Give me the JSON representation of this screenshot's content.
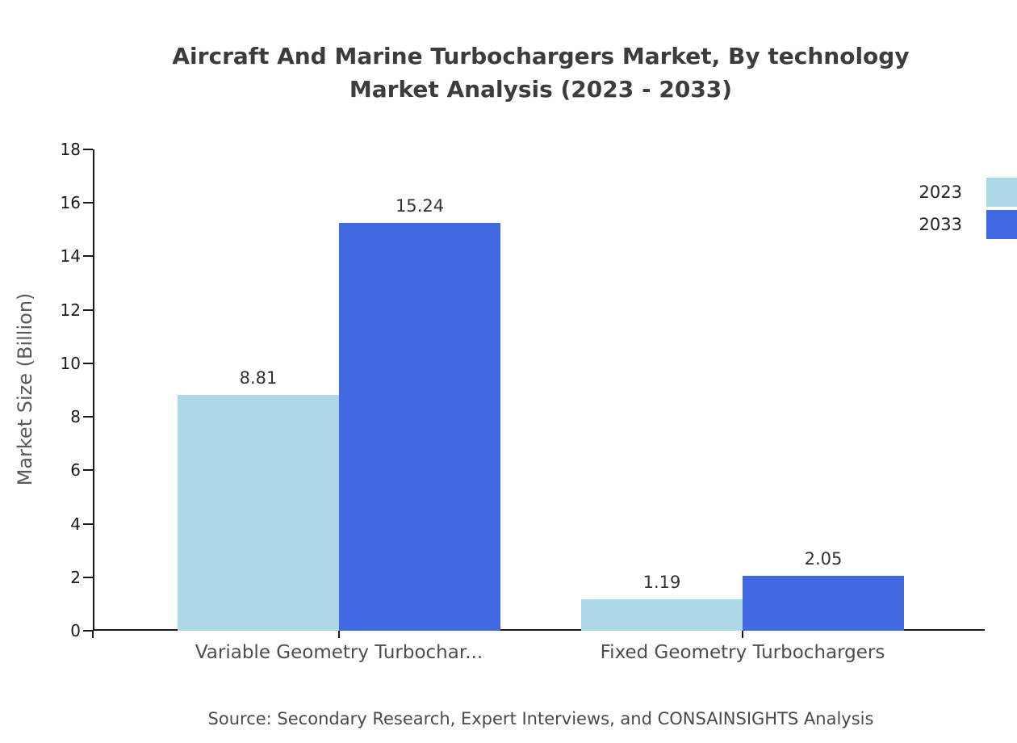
{
  "title": {
    "line1": "Aircraft And Marine Turbochargers Market, By technology",
    "line2": "Market Analysis (2023 - 2033)"
  },
  "source": "Source: Secondary Research, Expert Interviews, and CONSAINSIGHTS Analysis",
  "chart_data": {
    "type": "bar",
    "title": "Aircraft And Marine Turbochargers Market, By technology Market Analysis (2023 - 2033)",
    "categories": [
      "Variable Geometry Turbochar...",
      "Fixed Geometry Turbochargers"
    ],
    "series": [
      {
        "name": "2023",
        "color": "#ADD8E6",
        "values": [
          8.81,
          1.19
        ]
      },
      {
        "name": "2033",
        "color": "#4169E1",
        "values": [
          15.24,
          2.05
        ]
      }
    ],
    "xlabel": "",
    "ylabel": "Market Size (Billion)",
    "ylim": [
      0,
      18
    ],
    "ytick_step": 2,
    "grid": false,
    "value_labels": true,
    "legend_position": "top-right"
  }
}
